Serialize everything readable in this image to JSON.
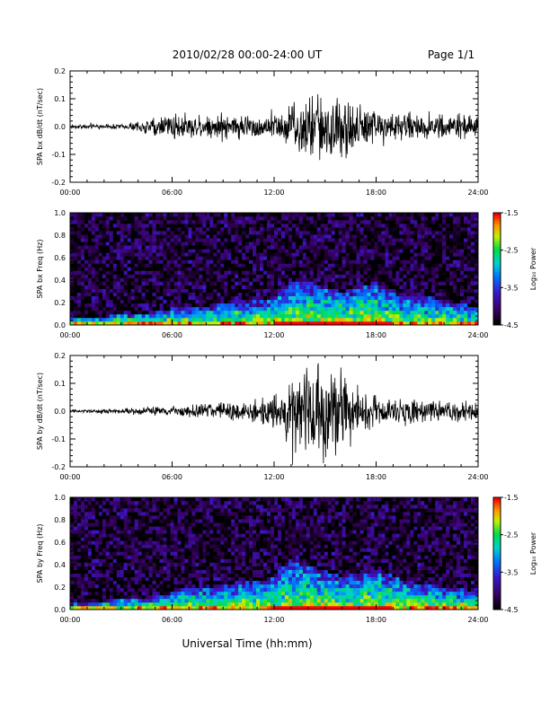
{
  "header": {
    "title": "2010/02/28  00:00-24:00 UT",
    "page": "Page 1/1"
  },
  "footer": {
    "xlabel": "Universal Time (hh:mm)"
  },
  "chart_data": [
    {
      "type": "line",
      "ylabel": "SPA bx dB/dt (nT/sec)",
      "ylim": [
        -0.2,
        0.2
      ],
      "yticks": [
        "-0.2",
        "-0.1",
        "0.0",
        "0.1",
        "0.2"
      ],
      "xlim": [
        0,
        24
      ],
      "xticks": [
        "00:00",
        "06:00",
        "12:00",
        "18:00",
        "24:00"
      ],
      "series": [
        {
          "x": [
            0,
            1,
            2,
            3,
            4,
            5,
            6,
            7,
            8,
            9,
            10,
            11,
            12,
            13,
            14,
            15,
            16,
            17,
            18,
            19,
            20,
            21,
            22,
            23,
            24
          ],
          "amplitude": [
            0.008,
            0.008,
            0.01,
            0.012,
            0.02,
            0.04,
            0.06,
            0.05,
            0.05,
            0.06,
            0.05,
            0.05,
            0.05,
            0.1,
            0.13,
            0.16,
            0.14,
            0.1,
            0.08,
            0.06,
            0.06,
            0.05,
            0.05,
            0.05,
            0.05
          ]
        }
      ]
    },
    {
      "type": "heatmap",
      "ylabel": "SPA bx Freq (Hz)",
      "ylim": [
        0.0,
        1.0
      ],
      "yticks": [
        "0.0",
        "0.2",
        "0.4",
        "0.6",
        "0.8",
        "1.0"
      ],
      "xlim": [
        0,
        24
      ],
      "xticks": [
        "00:00",
        "06:00",
        "12:00",
        "18:00",
        "24:00"
      ],
      "colorbar": {
        "label": "Log₁₀ Power",
        "ticks": [
          "-1.5",
          "-2.5",
          "-3.5",
          "-4.5"
        ],
        "range": [
          -4.5,
          -1.5
        ]
      },
      "x": [
        0,
        1,
        2,
        3,
        4,
        5,
        6,
        7,
        8,
        9,
        10,
        11,
        12,
        13,
        14,
        15,
        16,
        17,
        18,
        19,
        20,
        21,
        22,
        23,
        24
      ],
      "band_top_hz": [
        0.06,
        0.08,
        0.08,
        0.1,
        0.1,
        0.12,
        0.15,
        0.15,
        0.15,
        0.2,
        0.22,
        0.22,
        0.25,
        0.4,
        0.4,
        0.35,
        0.3,
        0.35,
        0.38,
        0.3,
        0.25,
        0.25,
        0.2,
        0.2,
        0.15
      ],
      "background_log_power": -4.3
    },
    {
      "type": "line",
      "ylabel": "SPA by dB/dt (nT/sec)",
      "ylim": [
        -0.2,
        0.2
      ],
      "yticks": [
        "-0.2",
        "-0.1",
        "0.0",
        "0.1",
        "0.2"
      ],
      "xlim": [
        0,
        24
      ],
      "xticks": [
        "00:00",
        "06:00",
        "12:00",
        "18:00",
        "24:00"
      ],
      "series": [
        {
          "x": [
            0,
            1,
            2,
            3,
            4,
            5,
            6,
            7,
            8,
            9,
            10,
            11,
            12,
            13,
            14,
            15,
            16,
            17,
            18,
            19,
            20,
            21,
            22,
            23,
            24
          ],
          "amplitude": [
            0.008,
            0.008,
            0.01,
            0.01,
            0.015,
            0.02,
            0.02,
            0.03,
            0.03,
            0.04,
            0.04,
            0.05,
            0.07,
            0.15,
            0.18,
            0.2,
            0.17,
            0.1,
            0.07,
            0.05,
            0.05,
            0.04,
            0.04,
            0.05,
            0.05
          ]
        }
      ]
    },
    {
      "type": "heatmap",
      "ylabel": "SPA by Freq (Hz)",
      "ylim": [
        0.0,
        1.0
      ],
      "yticks": [
        "0.0",
        "0.2",
        "0.4",
        "0.6",
        "0.8",
        "1.0"
      ],
      "xlim": [
        0,
        24
      ],
      "xticks": [
        "00:00",
        "06:00",
        "12:00",
        "18:00",
        "24:00"
      ],
      "colorbar": {
        "label": "Log₁₀ Power",
        "ticks": [
          "-1.5",
          "-2.5",
          "-3.5",
          "-4.5"
        ],
        "range": [
          -4.5,
          -1.5
        ]
      },
      "x": [
        0,
        1,
        2,
        3,
        4,
        5,
        6,
        7,
        8,
        9,
        10,
        11,
        12,
        13,
        14,
        15,
        16,
        17,
        18,
        19,
        20,
        21,
        22,
        23,
        24
      ],
      "band_top_hz": [
        0.05,
        0.06,
        0.08,
        0.1,
        0.1,
        0.12,
        0.15,
        0.2,
        0.2,
        0.22,
        0.25,
        0.25,
        0.3,
        0.45,
        0.4,
        0.35,
        0.3,
        0.32,
        0.35,
        0.3,
        0.25,
        0.22,
        0.2,
        0.2,
        0.15
      ],
      "background_log_power": -4.3
    }
  ]
}
